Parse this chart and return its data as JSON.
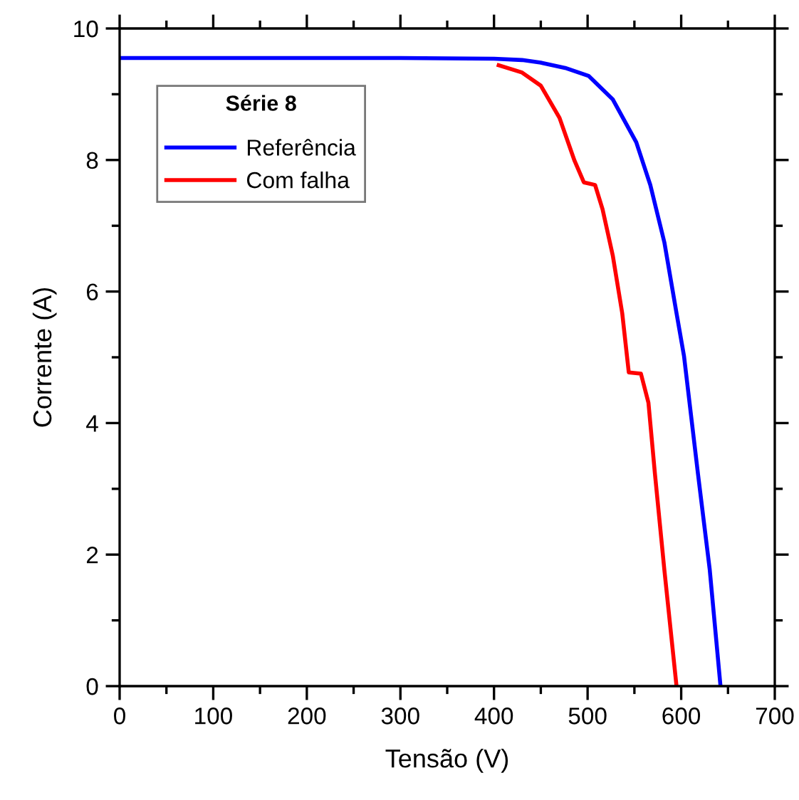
{
  "chart_data": {
    "type": "line",
    "xlabel": "Tensão (V)",
    "ylabel": "Corrente (A)",
    "legend_title": "Série 8",
    "legend": "top left",
    "grid": false,
    "xlim": [
      0,
      700
    ],
    "xticks": [
      0,
      100,
      200,
      300,
      400,
      500,
      600,
      700
    ],
    "ylim": [
      0,
      10
    ],
    "yticks": [
      0,
      2,
      4,
      6,
      8,
      10
    ],
    "series": [
      {
        "name": "Referência",
        "color": "#0000ff",
        "x": [
          0,
          100,
          200,
          300,
          400,
          430,
          450,
          476,
          501,
          527,
          552,
          567,
          582,
          595,
          603,
          618,
          630.5,
          642
        ],
        "values": [
          9.55,
          9.55,
          9.55,
          9.55,
          9.54,
          9.52,
          9.48,
          9.4,
          9.28,
          8.92,
          8.27,
          7.62,
          6.75,
          5.67,
          5.02,
          3.22,
          1.77,
          0
        ]
      },
      {
        "name": "Com falha",
        "color": "#ff0000",
        "x": [
          405,
          430,
          450,
          470,
          486,
          496,
          508,
          516,
          527,
          537,
          544,
          557,
          565,
          572,
          582,
          595
        ],
        "values": [
          9.44,
          9.33,
          9.13,
          8.64,
          7.99,
          7.66,
          7.62,
          7.25,
          6.54,
          5.67,
          4.77,
          4.75,
          4.31,
          3.22,
          1.77,
          0
        ]
      }
    ]
  }
}
